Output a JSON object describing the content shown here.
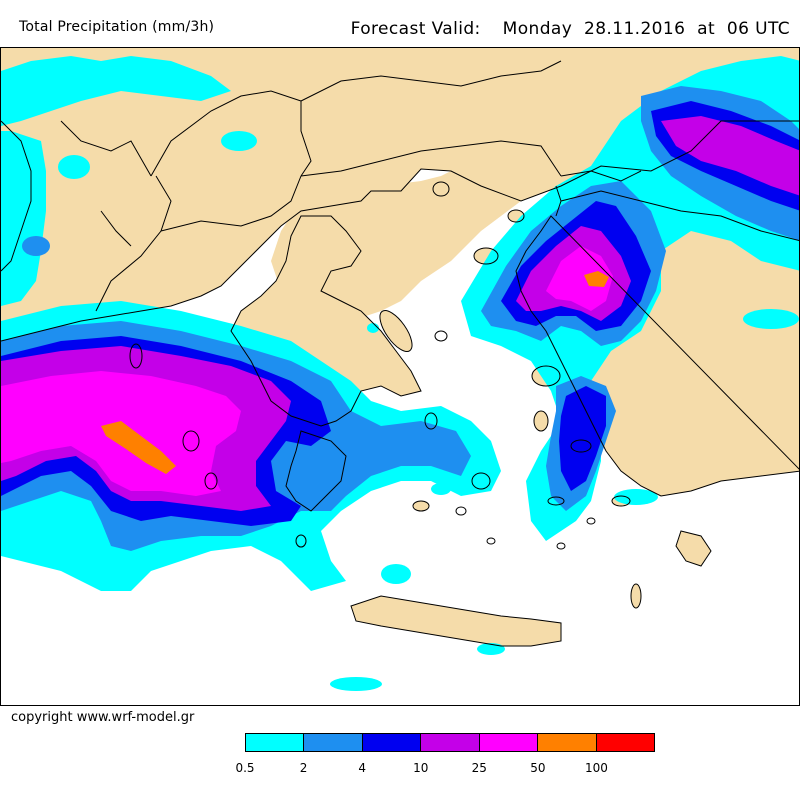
{
  "header": {
    "variable_title": "Total Precipitation (mm/3h)",
    "forecast_label": "Forecast Valid:",
    "forecast_day": "Monday",
    "forecast_date": "28.11.2016",
    "forecast_at": "at",
    "forecast_time": "06 UTC"
  },
  "footer": {
    "copyright": "copyright www.wrf-model.gr"
  },
  "colors": {
    "land": "#f5dcaa",
    "sea": "#ffffff",
    "border_lines": "#000000"
  },
  "legend": {
    "colors": [
      "#00ffff",
      "#1e8ff0",
      "#0000f0",
      "#c400e8",
      "#ff00ff",
      "#ff8000",
      "#ff0000"
    ],
    "labels": [
      "0.5",
      "2",
      "4",
      "10",
      "25",
      "50",
      "100"
    ]
  }
}
